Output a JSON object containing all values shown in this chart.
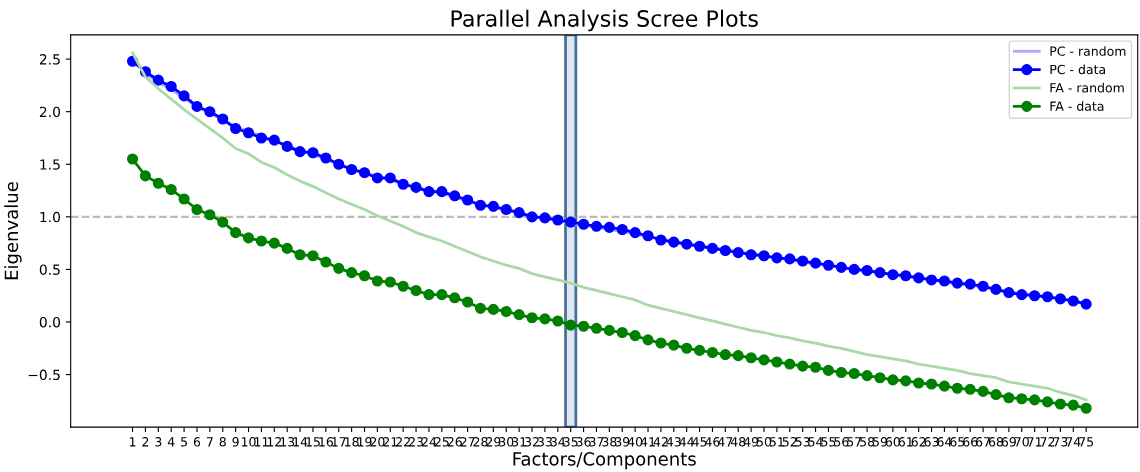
{
  "chart_data": {
    "type": "line",
    "title": "Parallel Analysis Scree Plots",
    "xlabel": "Factors/Components",
    "ylabel": "Eigenvalue",
    "x": [
      1,
      2,
      3,
      4,
      5,
      6,
      7,
      8,
      9,
      10,
      11,
      12,
      13,
      14,
      15,
      16,
      17,
      18,
      19,
      20,
      21,
      22,
      23,
      24,
      25,
      26,
      27,
      28,
      29,
      30,
      31,
      32,
      33,
      34,
      35,
      36,
      37,
      38,
      39,
      40,
      41,
      42,
      43,
      44,
      45,
      46,
      47,
      48,
      49,
      50,
      51,
      52,
      53,
      54,
      55,
      56,
      57,
      58,
      59,
      60,
      61,
      62,
      63,
      64,
      65,
      66,
      67,
      68,
      69,
      70,
      71,
      72,
      73,
      74,
      75
    ],
    "xlim": [
      -3.8,
      79
    ],
    "xticks": [
      1,
      2,
      3,
      4,
      5,
      6,
      7,
      8,
      9,
      10,
      11,
      12,
      13,
      14,
      15,
      16,
      17,
      18,
      19,
      20,
      21,
      22,
      23,
      24,
      25,
      26,
      27,
      28,
      29,
      30,
      31,
      32,
      33,
      34,
      35,
      36,
      37,
      38,
      39,
      40,
      41,
      42,
      43,
      44,
      45,
      46,
      47,
      48,
      49,
      50,
      51,
      52,
      53,
      54,
      55,
      56,
      57,
      58,
      59,
      60,
      61,
      62,
      63,
      64,
      65,
      66,
      67,
      68,
      69,
      70,
      71,
      72,
      73,
      74,
      75
    ],
    "ylim": [
      -1.0,
      2.73
    ],
    "yticks": [
      {
        "value": -0.5,
        "label": "−0.5"
      },
      {
        "value": 0.0,
        "label": "0.0"
      },
      {
        "value": 0.5,
        "label": "0.5"
      },
      {
        "value": 1.0,
        "label": "1.0"
      },
      {
        "value": 1.5,
        "label": "1.5"
      },
      {
        "value": 2.0,
        "label": "2.0"
      },
      {
        "value": 2.5,
        "label": "2.5"
      }
    ],
    "grid": false,
    "legend": "top right",
    "series": [
      {
        "name": "PC - random",
        "color": "#aaaaff",
        "marker": "none",
        "values": [
          2.52,
          2.36,
          2.28,
          2.21,
          2.13,
          2.05,
          1.99,
          1.92,
          1.86,
          1.81,
          1.77,
          1.72,
          1.68,
          1.63,
          1.59,
          1.55,
          1.5,
          1.46,
          1.42,
          1.38,
          1.35,
          1.31,
          1.28,
          1.25,
          1.22,
          1.19,
          1.15,
          1.12,
          1.09,
          1.06,
          1.04,
          1.01,
          0.99,
          0.96,
          0.94,
          0.92,
          0.9,
          0.88,
          0.86,
          0.84,
          0.81,
          0.79,
          0.77,
          0.75,
          0.73,
          0.71,
          0.69,
          0.67,
          0.65,
          0.63,
          0.61,
          0.59,
          0.57,
          0.55,
          0.54,
          0.52,
          0.5,
          0.48,
          0.47,
          0.45,
          0.43,
          0.42,
          0.4,
          0.38,
          0.36,
          0.35,
          0.33,
          0.31,
          0.29,
          0.27,
          0.26,
          0.24,
          0.22,
          0.2,
          0.18
        ]
      },
      {
        "name": "PC - data",
        "color": "#0000ff",
        "marker": "circle",
        "values": [
          2.48,
          2.38,
          2.3,
          2.24,
          2.15,
          2.05,
          2.0,
          1.93,
          1.84,
          1.8,
          1.75,
          1.73,
          1.67,
          1.62,
          1.61,
          1.56,
          1.5,
          1.45,
          1.42,
          1.37,
          1.37,
          1.31,
          1.28,
          1.24,
          1.24,
          1.2,
          1.16,
          1.11,
          1.1,
          1.07,
          1.04,
          1.0,
          0.99,
          0.97,
          0.95,
          0.93,
          0.91,
          0.9,
          0.88,
          0.85,
          0.82,
          0.78,
          0.76,
          0.74,
          0.72,
          0.7,
          0.68,
          0.66,
          0.64,
          0.63,
          0.61,
          0.6,
          0.58,
          0.56,
          0.54,
          0.52,
          0.5,
          0.49,
          0.47,
          0.45,
          0.44,
          0.42,
          0.4,
          0.39,
          0.37,
          0.36,
          0.34,
          0.31,
          0.28,
          0.26,
          0.25,
          0.24,
          0.22,
          0.2,
          0.17
        ]
      },
      {
        "name": "FA - random",
        "color": "#a9d9a9",
        "marker": "none",
        "values": [
          2.56,
          2.33,
          2.22,
          2.12,
          2.02,
          1.93,
          1.84,
          1.75,
          1.65,
          1.6,
          1.52,
          1.47,
          1.4,
          1.34,
          1.29,
          1.23,
          1.17,
          1.12,
          1.07,
          1.01,
          0.96,
          0.91,
          0.85,
          0.81,
          0.77,
          0.72,
          0.67,
          0.62,
          0.58,
          0.54,
          0.51,
          0.46,
          0.43,
          0.4,
          0.37,
          0.33,
          0.3,
          0.27,
          0.24,
          0.21,
          0.16,
          0.13,
          0.1,
          0.07,
          0.04,
          0.01,
          -0.02,
          -0.05,
          -0.08,
          -0.1,
          -0.13,
          -0.15,
          -0.18,
          -0.2,
          -0.23,
          -0.25,
          -0.28,
          -0.31,
          -0.33,
          -0.35,
          -0.37,
          -0.4,
          -0.42,
          -0.44,
          -0.46,
          -0.49,
          -0.51,
          -0.53,
          -0.57,
          -0.59,
          -0.61,
          -0.63,
          -0.67,
          -0.7,
          -0.74
        ]
      },
      {
        "name": "FA - data",
        "color": "#008000",
        "marker": "circle",
        "values": [
          1.55,
          1.39,
          1.32,
          1.26,
          1.17,
          1.07,
          1.02,
          0.95,
          0.85,
          0.8,
          0.77,
          0.75,
          0.7,
          0.64,
          0.63,
          0.57,
          0.51,
          0.47,
          0.44,
          0.39,
          0.38,
          0.34,
          0.3,
          0.26,
          0.26,
          0.23,
          0.19,
          0.13,
          0.12,
          0.1,
          0.07,
          0.04,
          0.03,
          0.01,
          -0.03,
          -0.04,
          -0.06,
          -0.08,
          -0.1,
          -0.13,
          -0.17,
          -0.2,
          -0.22,
          -0.25,
          -0.27,
          -0.29,
          -0.31,
          -0.32,
          -0.34,
          -0.36,
          -0.38,
          -0.4,
          -0.42,
          -0.43,
          -0.46,
          -0.48,
          -0.49,
          -0.51,
          -0.53,
          -0.55,
          -0.56,
          -0.58,
          -0.59,
          -0.61,
          -0.63,
          -0.64,
          -0.66,
          -0.69,
          -0.72,
          -0.73,
          -0.74,
          -0.76,
          -0.78,
          -0.79,
          -0.82
        ]
      }
    ],
    "ref_lines": [
      {
        "axis": "y",
        "value": 1.0,
        "color": "#bbbbbb",
        "line_style": "dashed"
      }
    ],
    "bands": [
      {
        "axis": "x",
        "from": 34.6,
        "to": 35.4,
        "color": "#dce9f5"
      }
    ]
  }
}
